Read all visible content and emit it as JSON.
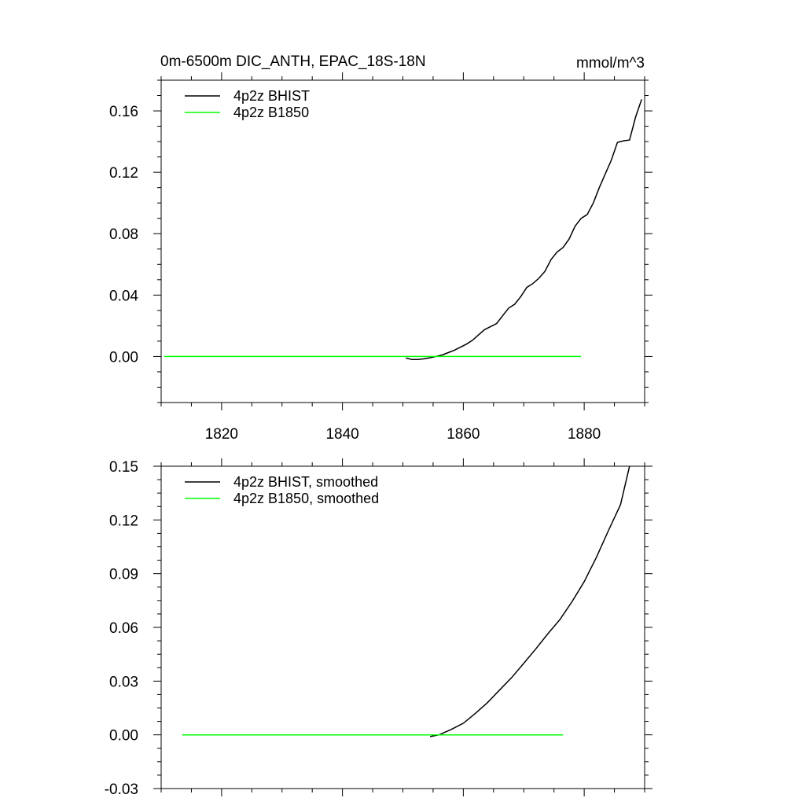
{
  "chart_data": [
    {
      "type": "line",
      "title": "0m-6500m DIC_ANTH, EPAC_18S-18N",
      "units": "mmol/m^3",
      "xlim": [
        1810,
        1890
      ],
      "ylim": [
        -0.03,
        0.18
      ],
      "x_ticks": [
        1820,
        1840,
        1860,
        1880
      ],
      "x_tick_labels": [
        "1820",
        "1840",
        "1860",
        "1880"
      ],
      "y_ticks": [
        0.0,
        0.04,
        0.08,
        0.12,
        0.16
      ],
      "y_tick_labels": [
        "0.00",
        "0.04",
        "0.08",
        "0.12",
        "0.16"
      ],
      "legend_position": "top-left",
      "series": [
        {
          "name": "4p2z BHIST",
          "color": "#000000",
          "x": [
            1850.5,
            1851.5,
            1852.5,
            1853.5,
            1854.5,
            1855.5,
            1856.5,
            1857.5,
            1858.5,
            1859.5,
            1860.5,
            1861.5,
            1862.5,
            1863.5,
            1864.5,
            1865.5,
            1866.5,
            1867.5,
            1868.5,
            1869.5,
            1870.5,
            1871.5,
            1872.5,
            1873.5,
            1874.5,
            1875.5,
            1876.5,
            1877.5,
            1878.5,
            1879.5,
            1880.5,
            1881.5,
            1882.5,
            1883.5,
            1884.5,
            1885.5,
            1886.5,
            1887.5,
            1888.5,
            1889.5
          ],
          "y": [
            -0.001,
            -0.002,
            -0.002,
            -0.0015,
            -0.0008,
            0.0,
            0.001,
            0.0025,
            0.004,
            0.006,
            0.008,
            0.0105,
            0.014,
            0.0175,
            0.0195,
            0.0215,
            0.0265,
            0.0315,
            0.034,
            0.039,
            0.045,
            0.0475,
            0.051,
            0.0555,
            0.063,
            0.068,
            0.071,
            0.0765,
            0.085,
            0.09,
            0.0925,
            0.1,
            0.11,
            0.119,
            0.128,
            0.1395,
            0.1405,
            0.141,
            0.156,
            0.1675
          ]
        },
        {
          "name": "4p2z B1850",
          "color": "#00ff00",
          "x": [
            1810.5,
            1879.5
          ],
          "y": [
            0.0,
            0.0
          ]
        }
      ]
    },
    {
      "type": "line",
      "xlim": [
        1810,
        1890
      ],
      "ylim": [
        -0.03,
        0.15
      ],
      "x_ticks": [
        1820,
        1840,
        1860,
        1880
      ],
      "y_ticks": [
        -0.03,
        0.0,
        0.03,
        0.06,
        0.09,
        0.12,
        0.15
      ],
      "y_tick_labels": [
        "-0.03",
        "0.00",
        "0.03",
        "0.06",
        "0.09",
        "0.12",
        "0.15"
      ],
      "legend_position": "top-left",
      "series": [
        {
          "name": "4p2z BHIST, smoothed",
          "color": "#000000",
          "x": [
            1854.5,
            1856,
            1858,
            1860,
            1862,
            1864,
            1866,
            1868,
            1870,
            1872,
            1874,
            1876,
            1878,
            1880,
            1882,
            1884,
            1886,
            1887.5
          ],
          "y": [
            -0.001,
            0.0,
            0.003,
            0.0065,
            0.012,
            0.018,
            0.025,
            0.032,
            0.04,
            0.048,
            0.0565,
            0.0645,
            0.0745,
            0.0855,
            0.099,
            0.114,
            0.1285,
            0.15
          ]
        },
        {
          "name": "4p2z B1850, smoothed",
          "color": "#00ff00",
          "x": [
            1813.5,
            1876.5
          ],
          "y": [
            0.0,
            0.0
          ]
        }
      ]
    }
  ]
}
